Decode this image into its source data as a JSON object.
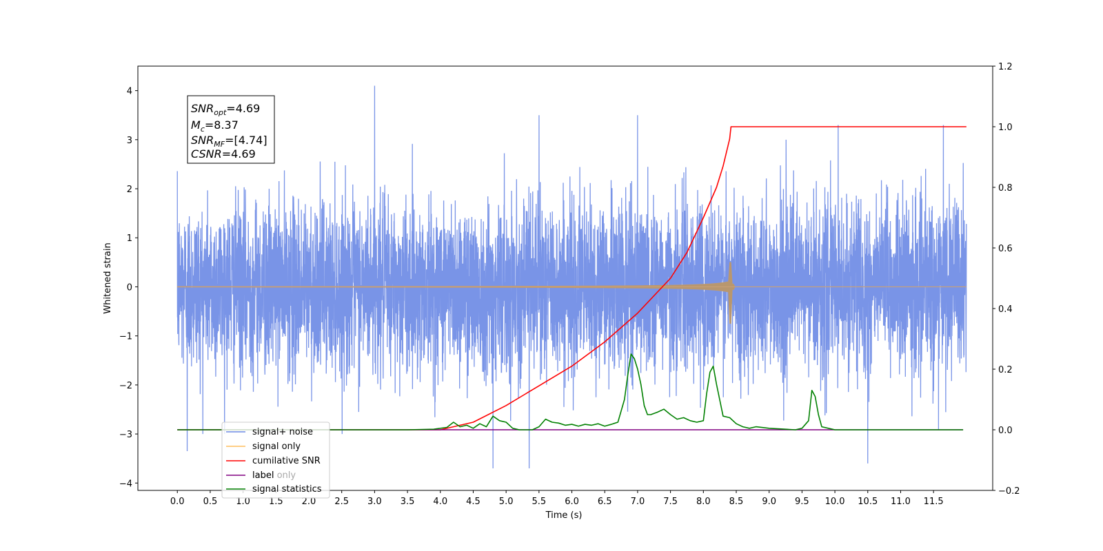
{
  "chart_data": {
    "type": "line",
    "title": "",
    "xlabel": "Time (s)",
    "ylabel": "Whitened strain",
    "xlim": [
      -0.6,
      12.4
    ],
    "ylim": [
      -4.15,
      4.5
    ],
    "y2lim": [
      -0.2,
      1.2
    ],
    "xticks": [
      "0.0",
      "0.5",
      "1.0",
      "1.5",
      "2.0",
      "2.5",
      "3.0",
      "3.5",
      "4.0",
      "4.5",
      "5.0",
      "5.5",
      "6.0",
      "6.5",
      "7.0",
      "7.5",
      "8.0",
      "8.5",
      "9.0",
      "9.5",
      "10.0",
      "10.5",
      "11.0",
      "11.5"
    ],
    "yticks": [
      "4",
      "3",
      "2",
      "1",
      "0",
      "−1",
      "−2",
      "−3",
      "−4"
    ],
    "y2ticks": [
      "1.2",
      "1.0",
      "0.8",
      "0.6",
      "0.4",
      "0.2",
      "0.0",
      "−0.2"
    ],
    "grid": false,
    "legend_position": "lower-left",
    "series": [
      {
        "name": "signal+ noise",
        "axis": "left",
        "color": "#6a88e4",
        "kind": "noise",
        "x_range": [
          0.0,
          12.0
        ],
        "typical_sigma": 0.85,
        "peaks": [
          [
            3.0,
            4.1
          ],
          [
            5.5,
            3.5
          ],
          [
            7.0,
            3.5
          ],
          [
            10.05,
            3.3
          ],
          [
            11.65,
            3.3
          ],
          [
            4.8,
            -3.7
          ],
          [
            5.35,
            -3.7
          ],
          [
            10.5,
            -3.6
          ],
          [
            0.15,
            -3.35
          ]
        ]
      },
      {
        "name": "signal only",
        "axis": "left",
        "color": "#ffbe5c",
        "kind": "chirp",
        "x_range": [
          0.0,
          12.0
        ],
        "merger_time": 8.42,
        "peak_amplitude": [
          0.5,
          -0.75
        ]
      },
      {
        "name": "cumilative SNR",
        "axis": "right",
        "color": "#ff0000",
        "x": [
          0.0,
          3.0,
          4.0,
          4.5,
          5.0,
          5.5,
          6.0,
          6.5,
          7.0,
          7.5,
          7.75,
          8.0,
          8.2,
          8.3,
          8.4,
          8.42,
          9.0,
          12.0
        ],
        "values": [
          0.0,
          0.0,
          0.0,
          0.025,
          0.08,
          0.145,
          0.21,
          0.29,
          0.385,
          0.5,
          0.585,
          0.7,
          0.8,
          0.87,
          0.96,
          1.0,
          1.0,
          1.0
        ]
      },
      {
        "name": "label",
        "axis": "right",
        "color": "#800080",
        "x": [
          0.0,
          11.95
        ],
        "values": [
          0.0,
          0.0
        ]
      },
      {
        "name": "signal statistics",
        "axis": "right",
        "color": "#008000",
        "x": [
          0.0,
          3.5,
          3.9,
          4.1,
          4.2,
          4.3,
          4.4,
          4.5,
          4.6,
          4.7,
          4.8,
          4.9,
          5.0,
          5.1,
          5.2,
          5.4,
          5.5,
          5.6,
          5.7,
          5.8,
          5.9,
          6.0,
          6.1,
          6.2,
          6.3,
          6.4,
          6.5,
          6.6,
          6.7,
          6.8,
          6.85,
          6.9,
          6.95,
          7.0,
          7.05,
          7.1,
          7.15,
          7.2,
          7.3,
          7.4,
          7.5,
          7.6,
          7.7,
          7.8,
          7.9,
          8.0,
          8.05,
          8.1,
          8.15,
          8.2,
          8.3,
          8.4,
          8.5,
          8.6,
          8.7,
          8.8,
          9.0,
          9.4,
          9.5,
          9.6,
          9.65,
          9.7,
          9.75,
          9.8,
          9.9,
          10.0,
          10.5,
          11.95
        ],
        "values": [
          0.0,
          0.0,
          0.002,
          0.008,
          0.025,
          0.01,
          0.015,
          0.005,
          0.02,
          0.01,
          0.045,
          0.03,
          0.025,
          0.005,
          0.0,
          0.0,
          0.01,
          0.035,
          0.025,
          0.022,
          0.015,
          0.018,
          0.012,
          0.018,
          0.015,
          0.02,
          0.012,
          0.018,
          0.025,
          0.1,
          0.18,
          0.25,
          0.235,
          0.2,
          0.15,
          0.08,
          0.05,
          0.05,
          0.058,
          0.068,
          0.05,
          0.035,
          0.04,
          0.03,
          0.025,
          0.03,
          0.12,
          0.19,
          0.21,
          0.15,
          0.045,
          0.04,
          0.02,
          0.01,
          0.005,
          0.01,
          0.005,
          0.0,
          0.005,
          0.03,
          0.13,
          0.11,
          0.05,
          0.01,
          0.005,
          0.0,
          0.0,
          0.0
        ]
      },
      {
        "name": "label only",
        "axis": "right",
        "color": "#9e9e9e",
        "x": [],
        "values": []
      }
    ],
    "annotation": {
      "lines": [
        {
          "base": "SNR",
          "sub": "opt",
          "rest": "=4.69"
        },
        {
          "base": "M",
          "sub": "c",
          "rest": "=8.37"
        },
        {
          "base": "SNR",
          "sub": "MF",
          "rest": "=[4.74]"
        },
        {
          "base": "CSNR",
          "sub": "",
          "rest": "=4.69"
        }
      ]
    }
  }
}
